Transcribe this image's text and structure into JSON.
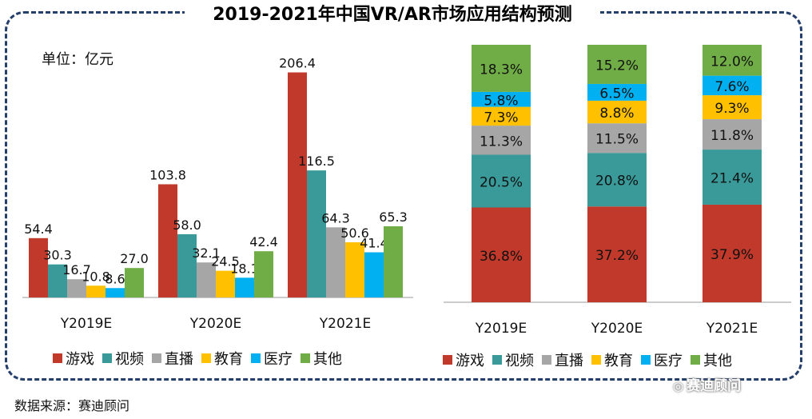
{
  "title": "2019-2021年中国VR/AR市场应用结构预测",
  "unit_label": "单位：亿元",
  "source": "数据来源：赛迪顾问",
  "watermark": "赛迪顾问",
  "colors": {
    "游戏": "#c0392b",
    "视频": "#3a9a9a",
    "直播": "#a6a6a6",
    "教育": "#ffc000",
    "医疗": "#00b0f0",
    "其他": "#70ad47"
  },
  "chart_data": [
    {
      "type": "bar",
      "categories": [
        "Y2019E",
        "Y2020E",
        "Y2021E"
      ],
      "ylim": [
        0,
        220
      ],
      "series": [
        {
          "name": "游戏",
          "values": [
            54.4,
            103.8,
            206.4
          ],
          "labels": [
            "54.4",
            "103.8",
            "206.4"
          ]
        },
        {
          "name": "视频",
          "values": [
            30.3,
            58.0,
            116.5
          ],
          "labels": [
            "30.3",
            "58.0",
            "116.5"
          ]
        },
        {
          "name": "直播",
          "values": [
            16.7,
            32.1,
            64.3
          ],
          "labels": [
            "16.7",
            "32.1",
            "64.3"
          ]
        },
        {
          "name": "教育",
          "values": [
            10.8,
            24.5,
            50.6
          ],
          "labels": [
            "10.8",
            "24.5",
            "50.6"
          ]
        },
        {
          "name": "医疗",
          "values": [
            8.6,
            18.1,
            41.4
          ],
          "labels": [
            "8.6",
            "18.1",
            "41.4"
          ]
        },
        {
          "name": "其他",
          "values": [
            27.0,
            42.4,
            65.3
          ],
          "labels": [
            "27.0",
            "42.4",
            "65.3"
          ]
        }
      ]
    },
    {
      "type": "bar",
      "stacked": true,
      "categories": [
        "Y2019E",
        "Y2020E",
        "Y2021E"
      ],
      "ylim": [
        0,
        100
      ],
      "series": [
        {
          "name": "游戏",
          "values": [
            36.8,
            37.2,
            37.9
          ],
          "labels": [
            "36.8%",
            "37.2%",
            "37.9%"
          ]
        },
        {
          "name": "视频",
          "values": [
            20.5,
            20.8,
            21.4
          ],
          "labels": [
            "20.5%",
            "20.8%",
            "21.4%"
          ]
        },
        {
          "name": "直播",
          "values": [
            11.3,
            11.5,
            11.8
          ],
          "labels": [
            "11.3%",
            "11.5%",
            "11.8%"
          ]
        },
        {
          "name": "教育",
          "values": [
            7.3,
            8.8,
            9.3
          ],
          "labels": [
            "7.3%",
            "8.8%",
            "9.3%"
          ]
        },
        {
          "name": "医疗",
          "values": [
            5.8,
            6.5,
            7.6
          ],
          "labels": [
            "5.8%",
            "6.5%",
            "7.6%"
          ]
        },
        {
          "name": "其他",
          "values": [
            18.3,
            15.2,
            12.0
          ],
          "labels": [
            "18.3%",
            "15.2%",
            "12.0%"
          ]
        }
      ]
    }
  ]
}
